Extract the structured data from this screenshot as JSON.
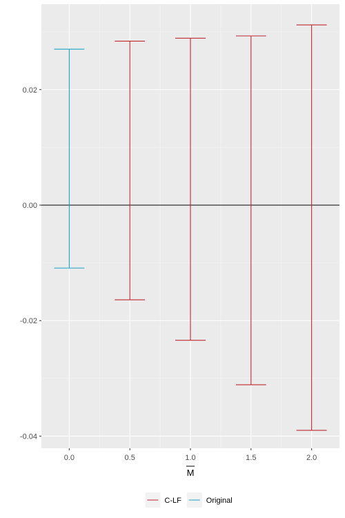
{
  "chart_data": {
    "type": "errorbar",
    "title": "",
    "xlabel": "M",
    "xlabel_overline": true,
    "ylabel": "",
    "xlim": [
      -0.23,
      2.23
    ],
    "ylim": [
      -0.0421,
      0.0348
    ],
    "x_ticks": [
      0.0,
      0.5,
      1.0,
      1.5,
      2.0
    ],
    "x_tick_labels": [
      "0.0",
      "0.5",
      "1.0",
      "1.5",
      "2.0"
    ],
    "y_ticks": [
      0.02,
      0.0,
      -0.02,
      -0.04
    ],
    "y_tick_labels": [
      "0.02",
      "0.00",
      "-0.02",
      "-0.04"
    ],
    "reference_line_y": 0.0,
    "grid": true,
    "legend_position": "bottom",
    "series": [
      {
        "name": "C-LF",
        "color": "#c0272d",
        "points": [
          {
            "x": 0.5,
            "ymin": -0.0164,
            "ymax": 0.0284
          },
          {
            "x": 1.0,
            "ymin": -0.0234,
            "ymax": 0.0289
          },
          {
            "x": 1.5,
            "ymin": -0.0311,
            "ymax": 0.0293
          },
          {
            "x": 2.0,
            "ymin": -0.039,
            "ymax": 0.0312
          }
        ]
      },
      {
        "name": "Original",
        "color": "#1ba3c6",
        "points": [
          {
            "x": 0.0,
            "ymin": -0.0109,
            "ymax": 0.027
          }
        ]
      }
    ]
  }
}
